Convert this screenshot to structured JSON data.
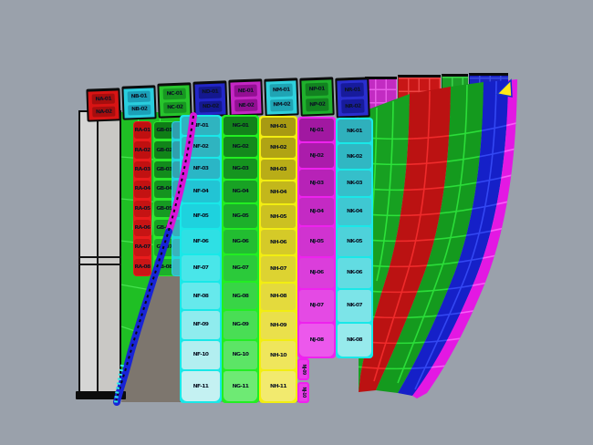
{
  "viewport": {
    "background": "#9aa1ab",
    "shadow_color": "#7d766e",
    "shadow_line": "rgba(20,18,14,0.18)"
  },
  "left_board": {
    "fill": "#cccbc9",
    "frame": "#0d0d0d"
  },
  "left_surface": {
    "color": "#1fbf24",
    "line": "#45e24f"
  },
  "ribbon": {
    "magenta": "#d816d8",
    "blue": "#1824d6",
    "dash": "#0a0a14",
    "tail": "#2ee8e8"
  },
  "marker": {
    "fill": "#ffe818",
    "edge": "#1230cc"
  },
  "back_strips": [
    {
      "tone": "magenta",
      "color": "#c22cc2",
      "line": "#e85ce8"
    },
    {
      "tone": "red",
      "color": "#c81616",
      "line": "#ee4444"
    },
    {
      "tone": "green",
      "color": "#1d9e28",
      "line": "#3bd44a"
    },
    {
      "tone": "blue",
      "color": "#1b24be",
      "line": "#3a4ae0"
    }
  ],
  "bowl_bands": [
    {
      "tone": "green-wide",
      "color": "#17a021",
      "line": "#2ce23a"
    },
    {
      "tone": "red",
      "color": "#bb1212",
      "line": "#ef2b2b"
    },
    {
      "tone": "green",
      "color": "#149a1e",
      "line": "#2bdd39"
    },
    {
      "tone": "blue",
      "color": "#1520c8",
      "line": "#3347f2"
    },
    {
      "tone": "magenta-rim",
      "color": "#e318e3",
      "line": "#f75df7"
    }
  ],
  "arc_panels": [
    {
      "tone": "red",
      "color": "#d81414",
      "bar": "#a60e0e",
      "labels": [
        "NA-01",
        "NA-02"
      ]
    },
    {
      "tone": "cyan",
      "color": "#29cede",
      "bar": "#1b9fb8",
      "labels": [
        "NB-01",
        "NB-02"
      ]
    },
    {
      "tone": "green",
      "color": "#27c42c",
      "bar": "#179721",
      "labels": [
        "NC-01",
        "NC-02"
      ]
    },
    {
      "tone": "blue",
      "color": "#2226c8",
      "bar": "#14188f",
      "labels": [
        "ND-01",
        "ND-02"
      ]
    },
    {
      "tone": "magenta",
      "color": "#c427c4",
      "bar": "#930f93",
      "labels": [
        "NE-01",
        "NE-02"
      ]
    },
    {
      "tone": "cyan",
      "color": "#2fd0dc",
      "bar": "#1fa4b4",
      "labels": [
        "NM-01",
        "NM-02"
      ]
    },
    {
      "tone": "green",
      "color": "#1fb12c",
      "bar": "#128220",
      "labels": [
        "NP-01",
        "NP-02"
      ]
    },
    {
      "tone": "blue",
      "color": "#2a2ecf",
      "bar": "#171b9c",
      "labels": [
        "NR-01",
        "NR-02"
      ]
    }
  ],
  "mini_columns": [
    {
      "tone": "red",
      "accent": "#ea1c1c",
      "fills": [
        "#bf1010",
        "#bf1010",
        "#c11111",
        "#c31212",
        "#c51313",
        "#c71414",
        "#c91515",
        "#cb1616"
      ],
      "labels": [
        "RA-01",
        "RA-02",
        "RA-03",
        "RA-04",
        "RA-05",
        "RA-06",
        "RA-07",
        "RA-08"
      ]
    },
    {
      "tone": "green",
      "accent": "#2ce52c",
      "fills": [
        "#0f7d16",
        "#118419",
        "#128b1c",
        "#14931f",
        "#169a22",
        "#18a225",
        "#1aa928",
        "#1cb02b"
      ],
      "labels": [
        "GB-01",
        "GB-02",
        "GB-03",
        "GB-04",
        "GB-05",
        "GB-06",
        "GB-07",
        "GB-08"
      ]
    },
    {
      "tone": "teal",
      "accent": "#20d8dc",
      "fills": [
        "#2f9fae",
        "#2f9fae",
        "#31a3b1",
        "#33a7b4",
        "#35abb7",
        "#37afba",
        "#39b3bd",
        "#3bb7c0"
      ],
      "labels": [
        "",
        "",
        "",
        "",
        "",
        "",
        "",
        ""
      ]
    }
  ],
  "front_columns": [
    {
      "tone": "cyan",
      "accent": "#19e8e8",
      "fills": [
        "#2fb4c0",
        "#2fb4c0",
        "#2ab6c6",
        "#22c4d4",
        "#1ed2de",
        "#2ee0e4",
        "#49e6e9",
        "#66e9ec",
        "#8fecee",
        "#b2eff0",
        "#c4f1f2"
      ],
      "labels": [
        "NF-01",
        "NF-02",
        "NF-03",
        "NF-04",
        "NF-05",
        "NF-06",
        "NF-07",
        "NF-08",
        "NF-09",
        "NF-10",
        "NF-11"
      ]
    },
    {
      "tone": "green",
      "accent": "#22ee22",
      "fills": [
        "#12821a",
        "#13891c",
        "#15941f",
        "#18a224",
        "#1cb02a",
        "#22bd31",
        "#2bca3a",
        "#38d546",
        "#49de55",
        "#5ce566",
        "#6eea74"
      ],
      "labels": [
        "NG-01",
        "NG-02",
        "NG-03",
        "NG-04",
        "NG-05",
        "NG-06",
        "NG-07",
        "NG-08",
        "NG-09",
        "NG-10",
        "NG-11"
      ]
    },
    {
      "tone": "yellow",
      "accent": "#f2ee11",
      "fills": [
        "#a89a12",
        "#b0a314",
        "#b9ad17",
        "#c3b71b",
        "#ccc121",
        "#d5ca28",
        "#ddd331",
        "#e4da3d",
        "#eae04b",
        "#efe65c",
        "#f2ea6e"
      ],
      "labels": [
        "NH-01",
        "NH-02",
        "NH-03",
        "NH-04",
        "NH-05",
        "NH-06",
        "NH-07",
        "NH-08",
        "NH-09",
        "NH-10",
        "NH-11"
      ]
    },
    {
      "tone": "magenta",
      "accent": "#ee22ee",
      "fills": [
        "#a118a1",
        "#ab1cab",
        "#b722b7",
        "#c42ac4",
        "#d033d0",
        "#db3edb",
        "#e44ae4",
        "#ec58ec"
      ],
      "labels": [
        "NJ-01",
        "NJ-02",
        "NJ-03",
        "NJ-04",
        "NJ-05",
        "NJ-06",
        "NJ-07",
        "NJ-08"
      ]
    },
    {
      "tone": "cyan",
      "accent": "#19e8e8",
      "fills": [
        "#2fb0bc",
        "#30b7c3",
        "#35bfca",
        "#3fc8d2",
        "#4ed2da",
        "#62dce2",
        "#7ce4e8",
        "#97eaec"
      ],
      "labels": [
        "NK-01",
        "NK-02",
        "NK-03",
        "NK-04",
        "NK-05",
        "NK-06",
        "NK-07",
        "NK-08"
      ]
    }
  ],
  "tabs": {
    "accent": "#ee22ee",
    "fill": "#e93fe9",
    "labels": [
      "NJ-09",
      "NJ-10"
    ]
  }
}
